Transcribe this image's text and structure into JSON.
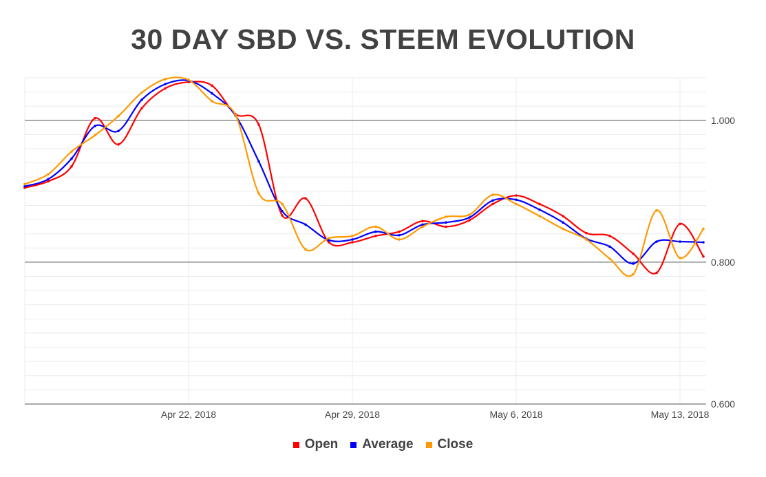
{
  "chart_data": {
    "type": "line",
    "title": "30 DAY SBD VS. STEEM EVOLUTION",
    "xlabel": "",
    "ylabel": "",
    "x": [
      "2018-04-15",
      "2018-04-16",
      "2018-04-17",
      "2018-04-18",
      "2018-04-19",
      "2018-04-20",
      "2018-04-21",
      "2018-04-22",
      "2018-04-23",
      "2018-04-24",
      "2018-04-25",
      "2018-04-26",
      "2018-04-27",
      "2018-04-28",
      "2018-04-29",
      "2018-04-30",
      "2018-05-01",
      "2018-05-02",
      "2018-05-03",
      "2018-05-04",
      "2018-05-05",
      "2018-05-06",
      "2018-05-07",
      "2018-05-08",
      "2018-05-09",
      "2018-05-10",
      "2018-05-11",
      "2018-05-12",
      "2018-05-13",
      "2018-05-14"
    ],
    "x_tick_labels": [
      "Apr 22, 2018",
      "Apr 29, 2018",
      "May 6, 2018",
      "May 13, 2018"
    ],
    "x_tick_dates": [
      "2018-04-22",
      "2018-04-29",
      "2018-05-06",
      "2018-05-13"
    ],
    "y_tick_labels": [
      "0.600",
      "0.800",
      "1.000"
    ],
    "y_ticks": [
      0.6,
      0.8,
      1.0
    ],
    "ylim": [
      0.6,
      1.06
    ],
    "y_axis_side": "right",
    "grid": true,
    "smooth": true,
    "legend_position": "bottom",
    "series": [
      {
        "name": "Open",
        "color": "#ff0000",
        "values": [
          0.905,
          0.914,
          0.935,
          1.003,
          0.966,
          1.017,
          1.045,
          1.054,
          1.049,
          1.009,
          0.994,
          0.866,
          0.89,
          0.828,
          0.828,
          0.837,
          0.843,
          0.858,
          0.85,
          0.859,
          0.882,
          0.894,
          0.882,
          0.865,
          0.841,
          0.837,
          0.812,
          0.785,
          0.854,
          0.808
        ]
      },
      {
        "name": "Average",
        "color": "#0000ff",
        "values": [
          0.907,
          0.917,
          0.946,
          0.992,
          0.985,
          1.029,
          1.051,
          1.056,
          1.038,
          1.007,
          0.942,
          0.872,
          0.853,
          0.831,
          0.832,
          0.843,
          0.838,
          0.853,
          0.856,
          0.863,
          0.887,
          0.888,
          0.874,
          0.856,
          0.833,
          0.822,
          0.798,
          0.829,
          0.829,
          0.828
        ]
      },
      {
        "name": "Close",
        "color": "#ff9900",
        "values": [
          0.91,
          0.924,
          0.956,
          0.979,
          1.006,
          1.039,
          1.058,
          1.057,
          1.027,
          1.008,
          0.897,
          0.882,
          0.818,
          0.834,
          0.837,
          0.85,
          0.832,
          0.85,
          0.864,
          0.867,
          0.895,
          0.882,
          0.865,
          0.847,
          0.832,
          0.805,
          0.783,
          0.873,
          0.806,
          0.847
        ]
      }
    ]
  }
}
